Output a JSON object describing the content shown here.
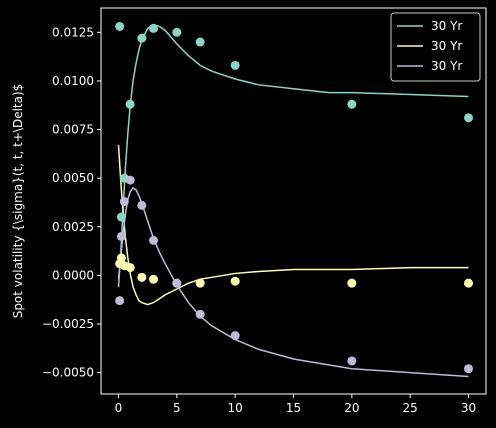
{
  "chart_data": {
    "type": "line",
    "title": "",
    "xlabel": "",
    "ylabel": "Spot volatility {\\sigma}(t, t, t+\\Delta)$",
    "xlim": [
      -1.5,
      31.5
    ],
    "ylim": [
      -0.0061,
      0.01375
    ],
    "xticks": [
      0,
      5,
      10,
      15,
      20,
      25,
      30
    ],
    "yticks": [
      -0.005,
      -0.0025,
      0.0,
      0.0025,
      0.005,
      0.0075,
      0.01,
      0.0125
    ],
    "ytick_labels": [
      "−0.0050",
      "−0.0025",
      "0.0000",
      "0.0025",
      "0.0050",
      "0.0075",
      "0.0100",
      "0.0125"
    ],
    "grid": false,
    "legend_position": "top-right",
    "series": [
      {
        "name": "30 Yr",
        "color": "#8dd3c7",
        "curve": {
          "x": [
            0,
            0.2,
            0.4,
            0.6,
            0.8,
            1,
            1.25,
            1.5,
            1.75,
            2,
            2.5,
            3,
            3.5,
            4,
            5,
            6,
            7,
            8,
            10,
            12,
            15,
            18,
            20,
            25,
            30
          ],
          "y": [
            -0.0006,
            0.0012,
            0.0035,
            0.0056,
            0.0073,
            0.0087,
            0.01,
            0.0109,
            0.0116,
            0.0121,
            0.0127,
            0.0129,
            0.0128,
            0.0126,
            0.0119,
            0.0113,
            0.0108,
            0.0105,
            0.0101,
            0.0098,
            0.0096,
            0.0094,
            0.0094,
            0.0093,
            0.0092
          ]
        },
        "points": {
          "x": [
            0.1,
            0.25,
            0.5,
            1,
            2,
            3,
            5,
            7,
            10,
            20,
            30
          ],
          "y": [
            0.0128,
            0.003,
            0.005,
            0.0088,
            0.0122,
            0.0127,
            0.0125,
            0.012,
            0.0108,
            0.0088,
            0.0081
          ]
        }
      },
      {
        "name": "30 Yr",
        "color": "#ffffb3",
        "curve": {
          "x": [
            0,
            0.2,
            0.4,
            0.6,
            0.8,
            1,
            1.25,
            1.5,
            1.75,
            2,
            2.5,
            3,
            3.5,
            4,
            5,
            6,
            7,
            8,
            10,
            12,
            15,
            18,
            20,
            25,
            30
          ],
          "y": [
            0.0067,
            0.0048,
            0.0032,
            0.0019,
            0.0009,
            0.0001,
            -0.0006,
            -0.001,
            -0.0013,
            -0.0014,
            -0.0015,
            -0.0014,
            -0.0012,
            -0.001,
            -0.0007,
            -0.0004,
            -0.0002,
            -0.0001,
            0.0001,
            0.0002,
            0.0003,
            0.0003,
            0.0003,
            0.0004,
            0.0004
          ]
        },
        "points": {
          "x": [
            0.1,
            0.25,
            0.5,
            1,
            2,
            3,
            5,
            7,
            10,
            20,
            30
          ],
          "y": [
            0.0006,
            0.0009,
            0.0005,
            0.0004,
            -0.0001,
            -0.0002,
            -0.0004,
            -0.0004,
            -0.0003,
            -0.0004,
            -0.0004
          ]
        }
      },
      {
        "name": "30 Yr",
        "color": "#bebada",
        "curve": {
          "x": [
            0,
            0.2,
            0.4,
            0.6,
            0.8,
            1,
            1.25,
            1.5,
            1.75,
            2,
            2.5,
            3,
            3.5,
            4,
            5,
            6,
            7,
            8,
            10,
            12,
            15,
            18,
            20,
            25,
            30
          ],
          "y": [
            -0.0002,
            0.001,
            0.0022,
            0.0032,
            0.0039,
            0.0043,
            0.0045,
            0.0044,
            0.0041,
            0.0037,
            0.0028,
            0.0019,
            0.0012,
            0.0006,
            -0.0005,
            -0.0014,
            -0.0021,
            -0.0026,
            -0.0033,
            -0.0038,
            -0.0043,
            -0.0046,
            -0.0048,
            -0.005,
            -0.0052
          ]
        },
        "points": {
          "x": [
            0.1,
            0.25,
            0.5,
            1,
            2,
            3,
            5,
            7,
            10,
            20,
            30
          ],
          "y": [
            -0.0013,
            0.002,
            0.0038,
            0.0049,
            0.0036,
            0.0018,
            -0.0004,
            -0.002,
            -0.0031,
            -0.0044,
            -0.0048
          ]
        }
      }
    ]
  }
}
